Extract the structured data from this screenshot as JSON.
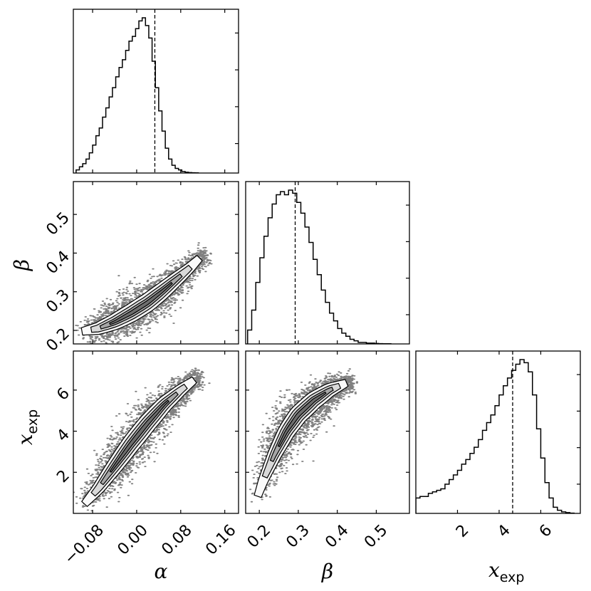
{
  "chart_data": {
    "type": "corner",
    "parameters": [
      {
        "name": "alpha",
        "label": "α",
        "range": [
          -0.115,
          0.185
        ],
        "ticks": [
          -0.08,
          0.0,
          0.08,
          0.16
        ],
        "tick_labels": [
          "−0.08",
          "0.00",
          "0.08",
          "0.16"
        ],
        "marker": 0.033
      },
      {
        "name": "beta",
        "label": "β",
        "range": [
          0.165,
          0.585
        ],
        "ticks": [
          0.2,
          0.3,
          0.4,
          0.5
        ],
        "tick_labels": [
          "0.2",
          "0.3",
          "0.4",
          "0.5"
        ],
        "marker": 0.292
      },
      {
        "name": "x_exp",
        "label": "x",
        "label_sub": "exp",
        "range": [
          0.0,
          7.9
        ],
        "ticks": [
          2,
          4,
          6
        ],
        "tick_labels": [
          "2",
          "4",
          "6"
        ],
        "marker": 4.65
      }
    ],
    "histograms": [
      {
        "param": "alpha",
        "bins_left": -0.11,
        "bin_width": 0.006,
        "counts": [
          0.02,
          0.04,
          0.06,
          0.09,
          0.13,
          0.18,
          0.24,
          0.29,
          0.36,
          0.42,
          0.49,
          0.55,
          0.62,
          0.68,
          0.73,
          0.79,
          0.85,
          0.88,
          0.93,
          0.98,
          1.0,
          0.95,
          0.87,
          0.72,
          0.55,
          0.4,
          0.27,
          0.16,
          0.09,
          0.05,
          0.03,
          0.02,
          0.01,
          0.005,
          0.003,
          0.002,
          0.001
        ]
      },
      {
        "param": "beta",
        "bins_left": 0.17,
        "bin_width": 0.0105,
        "counts": [
          0.09,
          0.22,
          0.4,
          0.56,
          0.7,
          0.82,
          0.91,
          0.97,
          0.99,
          0.97,
          1.0,
          0.98,
          0.92,
          0.85,
          0.76,
          0.66,
          0.55,
          0.45,
          0.35,
          0.27,
          0.2,
          0.15,
          0.1,
          0.07,
          0.05,
          0.03,
          0.02,
          0.01,
          0.01,
          0.005,
          0.005,
          0.003,
          0.002,
          0.001,
          0.001
        ]
      },
      {
        "param": "x_exp",
        "bins_left": 0.0,
        "bin_width": 0.2,
        "counts": [
          0.1,
          0.11,
          0.11,
          0.13,
          0.14,
          0.15,
          0.16,
          0.19,
          0.22,
          0.25,
          0.28,
          0.32,
          0.35,
          0.39,
          0.43,
          0.48,
          0.54,
          0.59,
          0.64,
          0.7,
          0.77,
          0.83,
          0.88,
          0.93,
          0.97,
          1.0,
          0.98,
          0.92,
          0.77,
          0.55,
          0.36,
          0.2,
          0.1,
          0.04,
          0.02,
          0.01,
          0.005,
          0.002
        ]
      }
    ],
    "contours_2d": [
      {
        "x": "alpha",
        "y": "beta",
        "ridge_x": [
          -0.105,
          -0.07,
          -0.04,
          -0.01,
          0.02,
          0.045,
          0.07,
          0.095,
          0.12
        ],
        "ridge_y": [
          0.196,
          0.205,
          0.222,
          0.245,
          0.272,
          0.3,
          0.33,
          0.36,
          0.395
        ],
        "center": [
          0.04,
          0.295
        ]
      },
      {
        "x": "alpha",
        "y": "x_exp",
        "ridge_x": [
          -0.1,
          -0.07,
          -0.04,
          -0.01,
          0.02,
          0.05,
          0.08,
          0.11
        ],
        "ridge_y": [
          0.3,
          1.2,
          2.3,
          3.4,
          4.4,
          5.3,
          6.0,
          6.6
        ],
        "center": [
          0.035,
          5.0
        ]
      },
      {
        "x": "beta",
        "y": "x_exp",
        "ridge_x": [
          0.19,
          0.21,
          0.24,
          0.27,
          0.3,
          0.34,
          0.38,
          0.43
        ],
        "ridge_y": [
          0.5,
          1.6,
          2.9,
          4.0,
          4.8,
          5.5,
          6.0,
          6.4
        ],
        "center": [
          0.29,
          4.9
        ]
      }
    ],
    "grid": false,
    "legend": "none"
  },
  "axis_labels": {
    "alpha": "α",
    "beta_x": "β",
    "beta_y": "β",
    "xexp_main_x": "x",
    "xexp_sub_x": "exp",
    "xexp_main_y": "x",
    "xexp_sub_y": "exp"
  }
}
